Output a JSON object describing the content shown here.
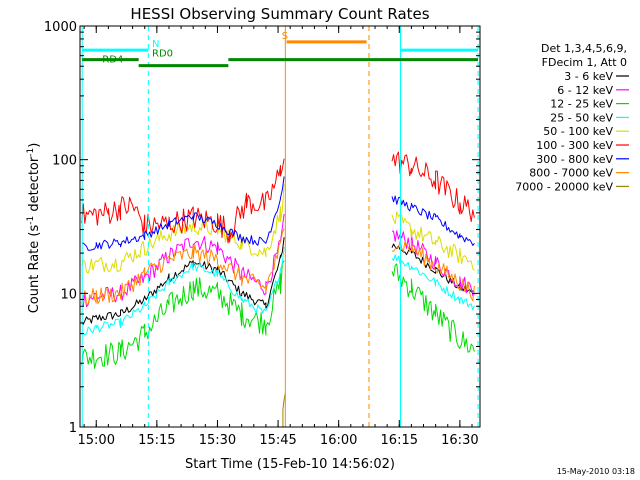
{
  "chart_data": {
    "type": "line",
    "title": "HESSI Observing Summary Count Rates",
    "xlabel": "Start Time (15-Feb-10 14:56:02)",
    "ylabel": "Count Rate (s-1 detector-1)",
    "ylabel_parts": {
      "a": "Count Rate (s",
      "b": "-1",
      "c": " detector",
      "d": "-1",
      "e": ")"
    },
    "footer": "15-May-2010 03:18",
    "y_scale": "log",
    "ylim": [
      1,
      1000
    ],
    "xlim": [
      14.933,
      16.583
    ],
    "x_ticks": [
      {
        "t": 15.0,
        "label": "15:00"
      },
      {
        "t": 15.25,
        "label": "15:15"
      },
      {
        "t": 15.5,
        "label": "15:30"
      },
      {
        "t": 15.75,
        "label": "15:45"
      },
      {
        "t": 16.0,
        "label": "16:00"
      },
      {
        "t": 16.25,
        "label": "16:15"
      },
      {
        "t": 16.5,
        "label": "16:30"
      }
    ],
    "y_ticks": [
      {
        "v": 1,
        "label": "1"
      },
      {
        "v": 10,
        "label": "10"
      },
      {
        "v": 100,
        "label": "100"
      },
      {
        "v": 1000,
        "label": "1000"
      }
    ],
    "legend_header": [
      "Det 1,3,4,5,6,9,",
      "FDecim 1, Att 0"
    ],
    "data_gaps": [
      [
        15.782,
        16.21
      ]
    ],
    "series": [
      {
        "name": "3 - 6 keV",
        "color": "#000000",
        "values": [
          [
            14.94,
            6
          ],
          [
            15.0,
            6.5
          ],
          [
            15.1,
            7
          ],
          [
            15.2,
            9
          ],
          [
            15.3,
            13
          ],
          [
            15.4,
            17
          ],
          [
            15.5,
            15
          ],
          [
            15.6,
            10
          ],
          [
            15.7,
            8
          ],
          [
            15.76,
            18
          ],
          [
            15.775,
            26
          ],
          [
            16.22,
            23
          ],
          [
            16.3,
            20
          ],
          [
            16.4,
            15
          ],
          [
            16.5,
            11
          ],
          [
            16.56,
            10
          ]
        ]
      },
      {
        "name": "6 - 12 keV",
        "color": "#ff00ff",
        "values": [
          [
            14.94,
            9
          ],
          [
            15.0,
            9.5
          ],
          [
            15.1,
            10
          ],
          [
            15.2,
            13
          ],
          [
            15.3,
            19
          ],
          [
            15.4,
            25
          ],
          [
            15.5,
            22
          ],
          [
            15.6,
            14
          ],
          [
            15.7,
            11
          ],
          [
            15.76,
            23
          ],
          [
            15.775,
            34
          ],
          [
            16.22,
            28
          ],
          [
            16.3,
            24
          ],
          [
            16.4,
            17
          ],
          [
            16.5,
            12
          ],
          [
            16.56,
            11
          ]
        ]
      },
      {
        "name": "12 - 25 keV",
        "color": "#00dd00",
        "values": [
          [
            14.94,
            3.3
          ],
          [
            15.0,
            3.4
          ],
          [
            15.1,
            3.6
          ],
          [
            15.2,
            5
          ],
          [
            15.3,
            8
          ],
          [
            15.4,
            11
          ],
          [
            15.5,
            10
          ],
          [
            15.6,
            7
          ],
          [
            15.7,
            6
          ],
          [
            15.76,
            12
          ],
          [
            15.775,
            18
          ],
          [
            16.22,
            15
          ],
          [
            16.3,
            11
          ],
          [
            16.4,
            7
          ],
          [
            16.5,
            4.5
          ],
          [
            16.56,
            3.8
          ]
        ]
      },
      {
        "name": "25 - 50 keV",
        "color": "#00ffff",
        "values": [
          [
            14.94,
            5
          ],
          [
            15.0,
            5.5
          ],
          [
            15.1,
            6
          ],
          [
            15.2,
            8
          ],
          [
            15.3,
            12
          ],
          [
            15.4,
            16
          ],
          [
            15.5,
            14
          ],
          [
            15.6,
            9
          ],
          [
            15.7,
            7
          ],
          [
            15.76,
            15
          ],
          [
            15.775,
            22
          ],
          [
            16.22,
            19
          ],
          [
            16.3,
            16
          ],
          [
            16.4,
            12
          ],
          [
            16.5,
            9
          ],
          [
            16.56,
            8
          ]
        ]
      },
      {
        "name": "50 - 100 keV",
        "color": "#dddd00",
        "values": [
          [
            14.94,
            16
          ],
          [
            15.0,
            16.5
          ],
          [
            15.1,
            17
          ],
          [
            15.2,
            22
          ],
          [
            15.3,
            28
          ],
          [
            15.4,
            32
          ],
          [
            15.5,
            30
          ],
          [
            15.6,
            24
          ],
          [
            15.7,
            20
          ],
          [
            15.76,
            40
          ],
          [
            15.775,
            58
          ],
          [
            16.22,
            37
          ],
          [
            16.3,
            30
          ],
          [
            16.4,
            24
          ],
          [
            16.5,
            19
          ],
          [
            16.56,
            17
          ]
        ]
      },
      {
        "name": "100 - 300 keV",
        "color": "#ff0000",
        "values": [
          [
            14.94,
            38
          ],
          [
            15.05,
            40
          ],
          [
            15.1,
            44
          ],
          [
            15.15,
            45
          ],
          [
            15.2,
            32
          ],
          [
            15.3,
            33
          ],
          [
            15.4,
            37
          ],
          [
            15.5,
            34
          ],
          [
            15.55,
            29
          ],
          [
            15.62,
            48
          ],
          [
            15.7,
            46
          ],
          [
            15.76,
            80
          ],
          [
            15.775,
            120
          ],
          [
            16.22,
            100
          ],
          [
            16.3,
            90
          ],
          [
            16.4,
            70
          ],
          [
            16.5,
            47
          ],
          [
            16.56,
            41
          ]
        ]
      },
      {
        "name": "300 - 800 keV",
        "color": "#0000ff",
        "values": [
          [
            14.94,
            22
          ],
          [
            15.0,
            23
          ],
          [
            15.1,
            24
          ],
          [
            15.2,
            27
          ],
          [
            15.3,
            33
          ],
          [
            15.4,
            38
          ],
          [
            15.5,
            33
          ],
          [
            15.6,
            26
          ],
          [
            15.7,
            24
          ],
          [
            15.76,
            52
          ],
          [
            15.775,
            75
          ],
          [
            16.22,
            52
          ],
          [
            16.3,
            44
          ],
          [
            16.4,
            36
          ],
          [
            16.5,
            27
          ],
          [
            16.56,
            24
          ]
        ]
      },
      {
        "name": "800 - 7000 keV",
        "color": "#ff8800",
        "values": [
          [
            14.94,
            9
          ],
          [
            15.0,
            9.5
          ],
          [
            15.1,
            10
          ],
          [
            15.2,
            14
          ],
          [
            15.3,
            18
          ],
          [
            15.4,
            20
          ],
          [
            15.5,
            18
          ],
          [
            15.6,
            13
          ],
          [
            15.7,
            11
          ],
          [
            15.76,
            22
          ],
          [
            15.775,
            32
          ],
          [
            16.22,
            24
          ],
          [
            16.3,
            22
          ],
          [
            16.4,
            16
          ],
          [
            16.5,
            12
          ],
          [
            16.56,
            10
          ]
        ]
      },
      {
        "name": "7000 - 20000 keV",
        "color": "#998800",
        "values": [
          [
            15.77,
            1
          ],
          [
            15.77,
            1.35
          ],
          [
            15.775,
            1.6
          ],
          [
            15.78,
            1.8
          ]
        ]
      }
    ],
    "spike_lines": [
      {
        "t": 15.78,
        "color": "#ff8800",
        "style": "solid"
      },
      {
        "t": 16.125,
        "color": "#ff8800",
        "style": "dashed"
      },
      {
        "t": 14.942,
        "color": "#00ffff",
        "style": "solid"
      },
      {
        "t": 15.215,
        "color": "#00ffff",
        "style": "dashed"
      },
      {
        "t": 16.255,
        "color": "#00ffff",
        "style": "solid"
      },
      {
        "t": 16.575,
        "color": "#00ffff",
        "style": "dashed"
      }
    ],
    "flag_bars": [
      {
        "label": "N",
        "color": "#00ffff",
        "segments": [
          [
            14.942,
            15.215
          ],
          [
            16.255,
            16.575
          ]
        ],
        "y_value": 660,
        "label_t": 15.23
      },
      {
        "label": "S",
        "color": "#ff8800",
        "segments": [
          [
            15.785,
            16.115
          ]
        ],
        "y_value": 760,
        "label_t": 15.765
      },
      {
        "label": "RD0",
        "color": "#008800",
        "segments": [
          [
            14.942,
            15.175
          ],
          [
            15.545,
            16.575
          ]
        ],
        "y_value": 560,
        "label_t": 15.23
      },
      {
        "label": "RD4",
        "color": "#008800",
        "segments": [
          [
            15.175,
            15.545
          ]
        ],
        "y_value": 505,
        "label_t": 15.025
      }
    ]
  }
}
